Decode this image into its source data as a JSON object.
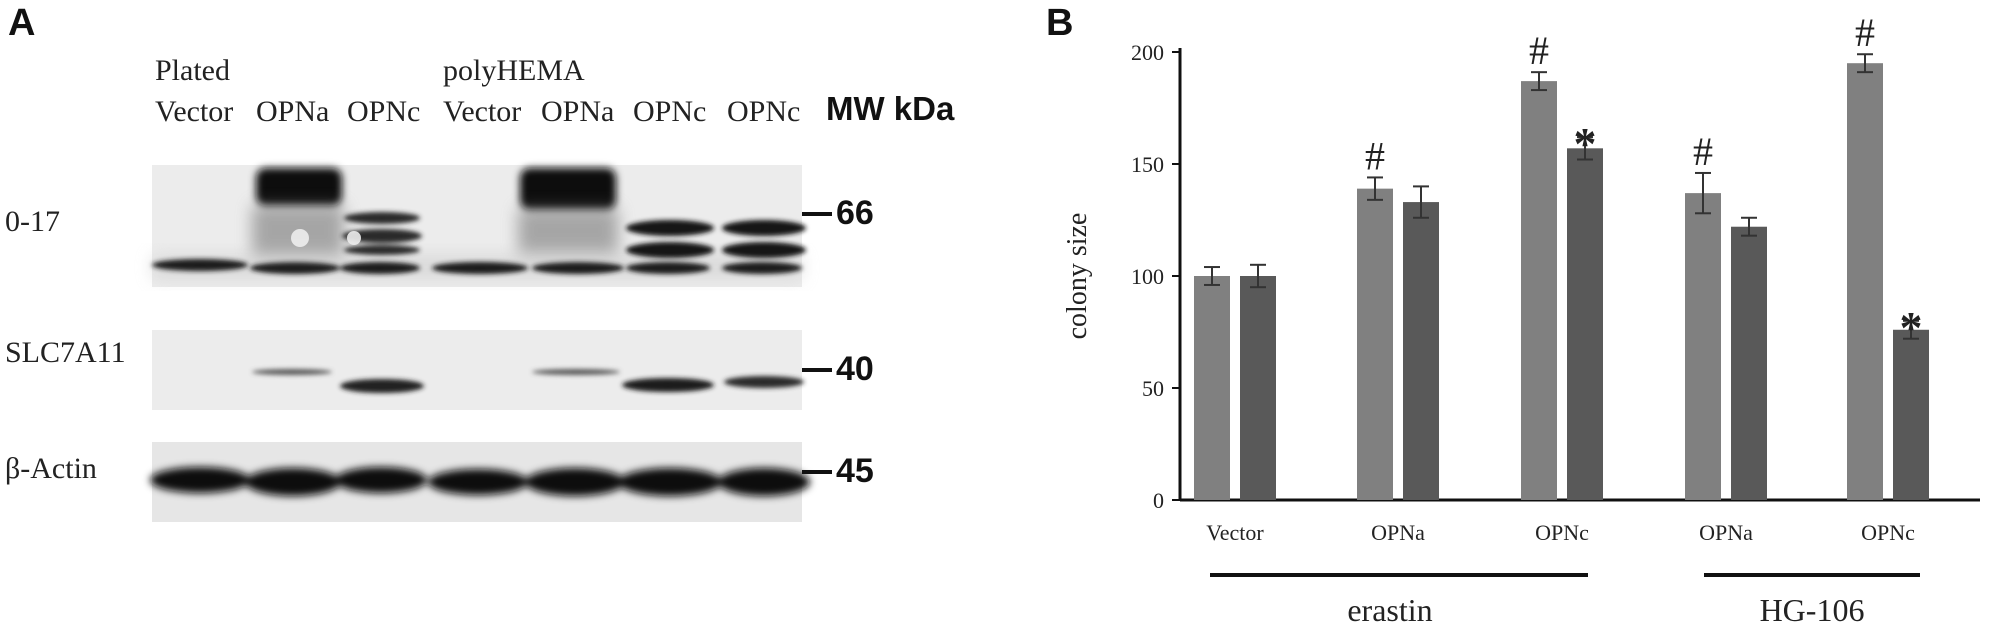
{
  "panel_a": {
    "letter": "A",
    "condition_labels": [
      "Plated",
      "polyHEMA"
    ],
    "lane_labels": [
      "Vector",
      "OPNa",
      "OPNc",
      "Vector",
      "OPNa",
      "OPNc",
      "OPNc"
    ],
    "mw_header": "MW kDa",
    "blots": [
      {
        "label": "0-17",
        "marker": "66"
      },
      {
        "label": "SLC7A11",
        "marker": "40"
      },
      {
        "label": "β-Actin",
        "marker": "45"
      }
    ]
  },
  "panel_b": {
    "letter": "B",
    "groups": [
      "erastin",
      "HG-106"
    ],
    "significance": [
      "#",
      "*"
    ],
    "colors": {
      "bar_light": "#808080",
      "bar_dark": "#595959",
      "axis": "#111111"
    }
  },
  "chart_data": {
    "type": "bar",
    "ylabel": "colony size",
    "xlabel": "",
    "ylim": [
      0,
      200
    ],
    "yticks": [
      0,
      50,
      100,
      150,
      200
    ],
    "categories": [
      "Vector",
      "OPNa",
      "OPNc",
      "OPNa",
      "OPNc"
    ],
    "series": [
      {
        "values": [
          100,
          139,
          187,
          137,
          195
        ],
        "errors": [
          4,
          5,
          4,
          9,
          4
        ],
        "color": "#808080",
        "annotations": [
          "",
          "#",
          "#",
          "#",
          "#"
        ]
      },
      {
        "values": [
          100,
          133,
          157,
          122,
          76
        ],
        "errors": [
          5,
          7,
          5,
          4,
          4
        ],
        "color": "#595959",
        "annotations": [
          "",
          "",
          "*",
          "",
          "*"
        ]
      }
    ],
    "grid": false
  }
}
